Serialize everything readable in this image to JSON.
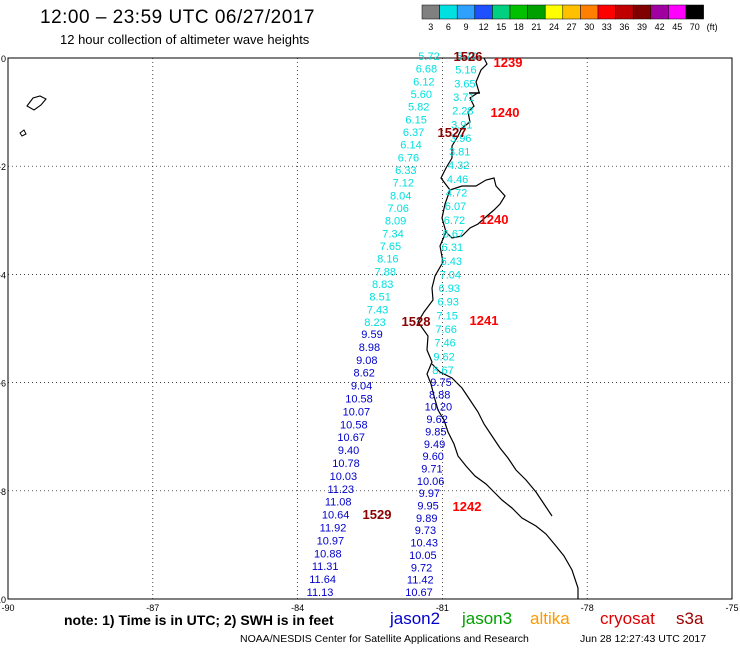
{
  "header": {
    "title": "12:00 – 23:59 UTC 06/27/2017",
    "subtitle": "12 hour collection of altimeter wave heights"
  },
  "colorbar": {
    "unit": "(ft)",
    "bins": [
      {
        "label": "3",
        "color": "#808080"
      },
      {
        "label": "6",
        "color": "#00e0e0"
      },
      {
        "label": "9",
        "color": "#30a0ff"
      },
      {
        "label": "12",
        "color": "#1e50ff"
      },
      {
        "label": "15",
        "color": "#00d080"
      },
      {
        "label": "18",
        "color": "#00c000"
      },
      {
        "label": "21",
        "color": "#00a000"
      },
      {
        "label": "24",
        "color": "#ffff00"
      },
      {
        "label": "27",
        "color": "#ffc000"
      },
      {
        "label": "30",
        "color": "#ff8000"
      },
      {
        "label": "33",
        "color": "#ff0000"
      },
      {
        "label": "36",
        "color": "#c00000"
      },
      {
        "label": "39",
        "color": "#800000"
      },
      {
        "label": "42",
        "color": "#a000a0"
      },
      {
        "label": "45",
        "color": "#ff00ff"
      },
      {
        "label": "70",
        "color": "#000000"
      }
    ]
  },
  "axes": {
    "x_ticks": [
      "-90",
      "-87",
      "-84",
      "-81",
      "-78",
      "-75"
    ],
    "y_ticks": [
      "0",
      "-2",
      "-4",
      "-6",
      "-8",
      "-10"
    ],
    "grid": "dotted"
  },
  "tracks": [
    {
      "satellite": "jason2",
      "passes": [
        {
          "time": "1526",
          "color": "#8b0000"
        },
        {
          "time": "1527",
          "color": "#8b0000"
        },
        {
          "time": "1528",
          "color": "#8b0000"
        },
        {
          "time": "1529",
          "color": "#8b0000"
        }
      ],
      "light_values": [
        "5.72",
        "6.68",
        "6.12",
        "5.60",
        "5.82",
        "6.15",
        "6.37",
        "6.14",
        "6.76",
        "6.33",
        "7.12",
        "8.04",
        "7.06",
        "8.09",
        "7.34",
        "7.65",
        "8.16",
        "7.88",
        "8.83",
        "8.51",
        "7.43",
        "8.23"
      ],
      "dark_values": [
        "9.59",
        "8.98",
        "9.08",
        "8.62",
        "9.04",
        "10.58",
        "10.07",
        "10.58",
        "10.67",
        "9.40",
        "10.78",
        "10.03",
        "11.23",
        "11.08",
        "10.64",
        "11.92",
        "10.97",
        "10.88",
        "11.31",
        "11.64",
        "11.13"
      ]
    },
    {
      "satellite": "jason3",
      "passes": [
        {
          "time": "1239",
          "color": "#ff0000"
        },
        {
          "time": "1240",
          "color": "#ff0000"
        },
        {
          "time": "1240",
          "color": "#ff0000"
        },
        {
          "time": "1241",
          "color": "#ff0000"
        },
        {
          "time": "1242",
          "color": "#ff0000"
        }
      ],
      "light_values": [
        "5.79",
        "5.16",
        "3.65",
        "3.71",
        "2.28",
        "3.91",
        "3.96",
        "3.81",
        "4.32",
        "4.46",
        "4.72",
        "6.07",
        "6.72",
        "6.67",
        "6.31",
        "6.43",
        "7.04",
        "6.93",
        "6.93",
        "7.15",
        "7.66",
        "7.46",
        "9.62",
        "8.67"
      ],
      "dark_values": [
        "9.75",
        "8.88",
        "10.20",
        "9.62",
        "9.85",
        "9.49",
        "9.60",
        "9.71",
        "10.06",
        "9.97",
        "9.95",
        "9.89",
        "9.73",
        "10.43",
        "10.05",
        "9.72",
        "11.42",
        "10.67"
      ]
    }
  ],
  "legend": {
    "note": "note: 1) Time is in UTC; 2) SWH is in feet",
    "satellites": [
      {
        "name": "jason2",
        "color": "#0000cc"
      },
      {
        "name": "jason3",
        "color": "#00a000"
      },
      {
        "name": "altika",
        "color": "#ff9900"
      },
      {
        "name": "cryosat",
        "color": "#dd0000"
      },
      {
        "name": "s3a",
        "color": "#a00000"
      }
    ]
  },
  "footer": {
    "credit": "NOAA/NESDIS Center for Satellite Applications and Research",
    "timestamp": "Jun 28 12:27:43 UTC 2017"
  }
}
